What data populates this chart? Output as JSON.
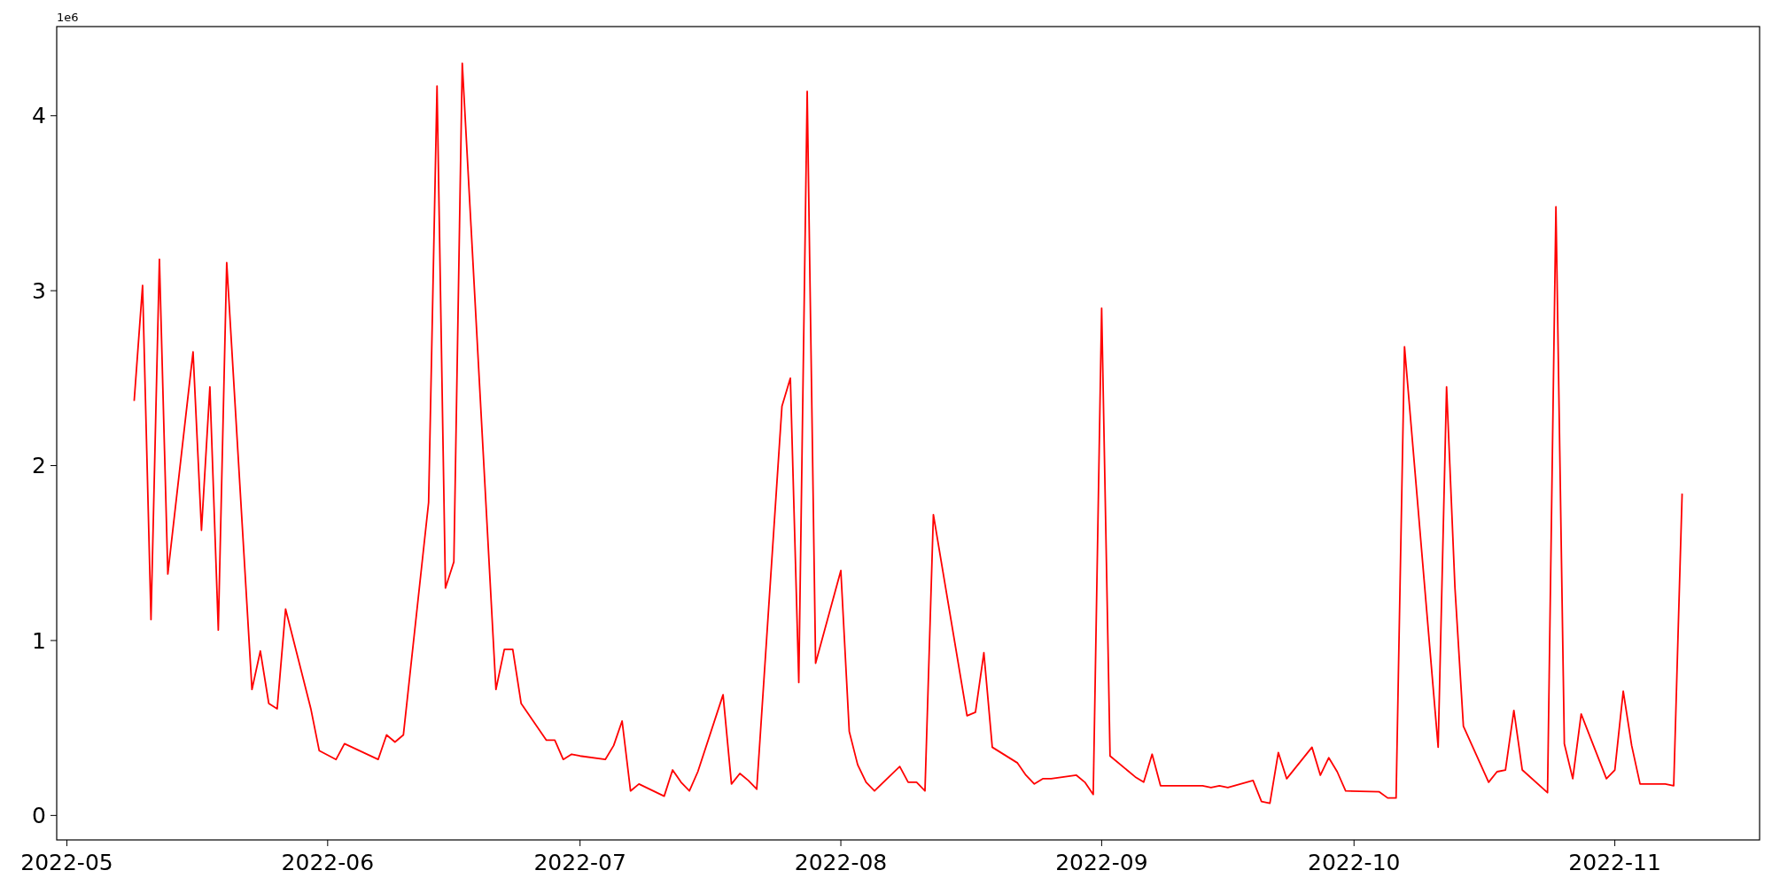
{
  "chart_data": {
    "type": "line",
    "annotations": [
      "1e6"
    ],
    "x": [
      "2022-05-09",
      "2022-05-10",
      "2022-05-11",
      "2022-05-12",
      "2022-05-13",
      "2022-05-16",
      "2022-05-17",
      "2022-05-18",
      "2022-05-19",
      "2022-05-20",
      "2022-05-23",
      "2022-05-24",
      "2022-05-25",
      "2022-05-26",
      "2022-05-27",
      "2022-05-30",
      "2022-05-31",
      "2022-06-02",
      "2022-06-03",
      "2022-06-07",
      "2022-06-08",
      "2022-06-09",
      "2022-06-10",
      "2022-06-13",
      "2022-06-14",
      "2022-06-15",
      "2022-06-16",
      "2022-06-17",
      "2022-06-21",
      "2022-06-22",
      "2022-06-23",
      "2022-06-24",
      "2022-06-27",
      "2022-06-28",
      "2022-06-29",
      "2022-06-30",
      "2022-07-01",
      "2022-07-04",
      "2022-07-05",
      "2022-07-06",
      "2022-07-07",
      "2022-07-08",
      "2022-07-11",
      "2022-07-12",
      "2022-07-13",
      "2022-07-14",
      "2022-07-15",
      "2022-07-18",
      "2022-07-19",
      "2022-07-20",
      "2022-07-21",
      "2022-07-22",
      "2022-07-25",
      "2022-07-26",
      "2022-07-27",
      "2022-07-28",
      "2022-07-29",
      "2022-08-01",
      "2022-08-02",
      "2022-08-03",
      "2022-08-04",
      "2022-08-05",
      "2022-08-08",
      "2022-08-09",
      "2022-08-10",
      "2022-08-11",
      "2022-08-12",
      "2022-08-16",
      "2022-08-17",
      "2022-08-18",
      "2022-08-19",
      "2022-08-22",
      "2022-08-23",
      "2022-08-24",
      "2022-08-25",
      "2022-08-26",
      "2022-08-29",
      "2022-08-30",
      "2022-08-31",
      "2022-09-01",
      "2022-09-02",
      "2022-09-05",
      "2022-09-06",
      "2022-09-07",
      "2022-09-08",
      "2022-09-13",
      "2022-09-14",
      "2022-09-15",
      "2022-09-16",
      "2022-09-19",
      "2022-09-20",
      "2022-09-21",
      "2022-09-22",
      "2022-09-23",
      "2022-09-26",
      "2022-09-27",
      "2022-09-28",
      "2022-09-29",
      "2022-09-30",
      "2022-10-04",
      "2022-10-05",
      "2022-10-06",
      "2022-10-07",
      "2022-10-11",
      "2022-10-12",
      "2022-10-13",
      "2022-10-14",
      "2022-10-17",
      "2022-10-18",
      "2022-10-19",
      "2022-10-20",
      "2022-10-21",
      "2022-10-24",
      "2022-10-25",
      "2022-10-26",
      "2022-10-27",
      "2022-10-28",
      "2022-10-31",
      "2022-11-01",
      "2022-11-02",
      "2022-11-03",
      "2022-11-04",
      "2022-11-07",
      "2022-11-08",
      "2022-11-09"
    ],
    "series": [
      {
        "color": "#ff0000",
        "values": [
          2.37,
          3.03,
          1.12,
          3.18,
          1.38,
          2.65,
          1.63,
          2.45,
          1.06,
          3.16,
          0.72,
          0.94,
          0.64,
          0.61,
          1.18,
          0.61,
          0.37,
          0.32,
          0.41,
          0.32,
          0.46,
          0.42,
          0.46,
          1.79,
          4.17,
          1.3,
          1.45,
          4.3,
          0.72,
          0.95,
          0.95,
          0.64,
          0.43,
          0.43,
          0.32,
          0.35,
          0.34,
          0.32,
          0.4,
          0.54,
          0.14,
          0.18,
          0.11,
          0.26,
          0.19,
          0.14,
          0.25,
          0.69,
          0.18,
          0.24,
          0.2,
          0.15,
          2.34,
          2.5,
          0.76,
          4.14,
          0.87,
          1.4,
          0.48,
          0.29,
          0.19,
          0.14,
          0.28,
          0.19,
          0.19,
          0.14,
          1.72,
          0.57,
          0.59,
          0.93,
          0.39,
          0.3,
          0.23,
          0.18,
          0.21,
          0.21,
          0.23,
          0.19,
          0.12,
          2.9,
          0.34,
          0.22,
          0.19,
          0.35,
          0.17,
          0.17,
          0.16,
          0.17,
          0.16,
          0.2,
          0.08,
          0.07,
          0.36,
          0.21,
          0.39,
          0.23,
          0.33,
          0.25,
          0.14,
          0.135,
          0.1,
          0.1,
          2.68,
          0.39,
          2.45,
          1.3,
          0.51,
          0.19,
          0.25,
          0.26,
          0.6,
          0.26,
          0.13,
          3.48,
          0.41,
          0.21,
          0.58,
          0.21,
          0.26,
          0.71,
          0.4,
          0.18,
          0.18,
          0.17,
          1.84
        ]
      }
    ],
    "xlim": [
      "2022-04-29T19:00",
      "2022-11-18T05:00"
    ],
    "xticks": [
      "2022-05",
      "2022-06",
      "2022-07",
      "2022-08",
      "2022-09",
      "2022-10",
      "2022-11"
    ],
    "ylim": [
      -0.14,
      4.51
    ],
    "yticks": [
      0,
      1,
      2,
      3,
      4
    ],
    "grid": false,
    "marker": "none",
    "line_style": "solid"
  }
}
